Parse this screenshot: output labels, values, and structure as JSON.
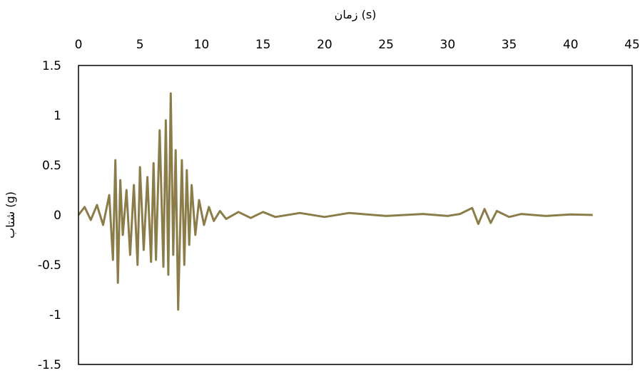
{
  "chart_data": {
    "type": "line",
    "title": "",
    "xlabel": "زمان (s)",
    "ylabel": "شتاب (g)",
    "xlim": [
      0,
      45
    ],
    "ylim": [
      -1.5,
      1.5
    ],
    "x_ticks": [
      "0",
      "5",
      "10",
      "15",
      "20",
      "25",
      "30",
      "35",
      "40",
      "45"
    ],
    "y_ticks": [
      "1.5",
      "1",
      "0.5",
      "0",
      "-0.5",
      "-1",
      "-1.5"
    ],
    "x_axis_position": "top",
    "grid": false,
    "legend": "none",
    "line_color": "#8b7d4a",
    "series": [
      {
        "x": [
          0,
          0.5,
          1.0,
          1.5,
          2.0,
          2.5,
          2.8,
          3.0,
          3.2,
          3.4,
          3.6,
          3.9,
          4.2,
          4.5,
          4.8,
          5.0,
          5.3,
          5.6,
          5.9,
          6.1,
          6.3,
          6.6,
          6.9,
          7.1,
          7.3,
          7.5,
          7.7,
          7.9,
          8.1,
          8.4,
          8.6,
          8.8,
          9.0,
          9.2,
          9.5,
          9.8,
          10.2,
          10.6,
          11.0,
          11.5,
          12.0,
          13.0,
          14.0,
          15.0,
          16.0,
          18.0,
          20.0,
          22.0,
          25.0,
          28.0,
          30.0,
          31.0,
          32.0,
          32.5,
          33.0,
          33.5,
          34.0,
          35.0,
          36.0,
          38.0,
          40.0,
          41.8
        ],
        "y": [
          0,
          0.08,
          -0.05,
          0.1,
          -0.1,
          0.2,
          -0.45,
          0.55,
          -0.68,
          0.35,
          -0.2,
          0.25,
          -0.4,
          0.3,
          -0.5,
          0.48,
          -0.35,
          0.38,
          -0.47,
          0.52,
          -0.45,
          0.85,
          -0.52,
          0.95,
          -0.6,
          1.22,
          -0.4,
          0.65,
          -0.95,
          0.55,
          -0.5,
          0.45,
          -0.3,
          0.3,
          -0.2,
          0.15,
          -0.1,
          0.08,
          -0.06,
          0.04,
          -0.04,
          0.03,
          -0.03,
          0.03,
          -0.02,
          0.02,
          -0.02,
          0.02,
          -0.01,
          0.01,
          -0.01,
          0.01,
          0.07,
          -0.09,
          0.06,
          -0.08,
          0.04,
          -0.02,
          0.01,
          -0.01,
          0.005,
          0
        ]
      }
    ]
  }
}
